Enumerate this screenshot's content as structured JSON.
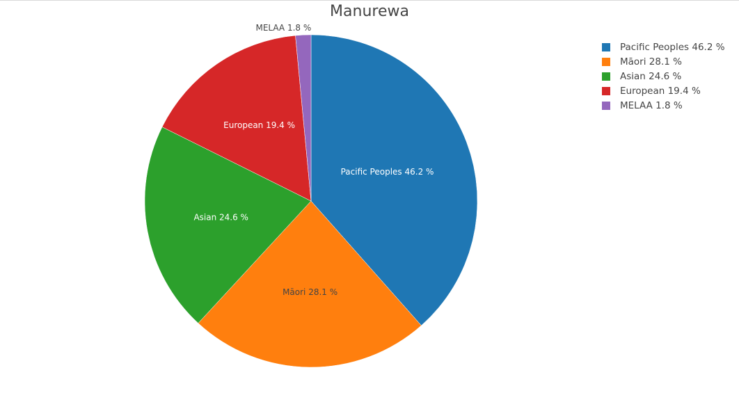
{
  "chart_data": {
    "type": "pie",
    "title": "Manurewa",
    "slices": [
      {
        "label": "Pacific Peoples",
        "value": 46.2,
        "text": "Pacific Peoples 46.2 %",
        "color": "#1f77b4",
        "label_color": "#ffffff"
      },
      {
        "label": "Māori",
        "value": 28.1,
        "text": "Māori 28.1 %",
        "color": "#ff7f0e",
        "label_color": "#444444"
      },
      {
        "label": "Asian",
        "value": 24.6,
        "text": "Asian 24.6 %",
        "color": "#2ca02c",
        "label_color": "#ffffff"
      },
      {
        "label": "European",
        "value": 19.4,
        "text": "European 19.4 %",
        "color": "#d62728",
        "label_color": "#ffffff"
      },
      {
        "label": "MELAA",
        "value": 1.8,
        "text": "MELAA 1.8 %",
        "color": "#9467bd",
        "label_color": "#444444"
      }
    ],
    "legend": {
      "placement": "top-right",
      "entries": [
        "Pacific Peoples 46.2 %",
        "Māori 28.1 %",
        "Asian 24.6 %",
        "European 19.4 %",
        "MELAA 1.8 %"
      ]
    }
  }
}
